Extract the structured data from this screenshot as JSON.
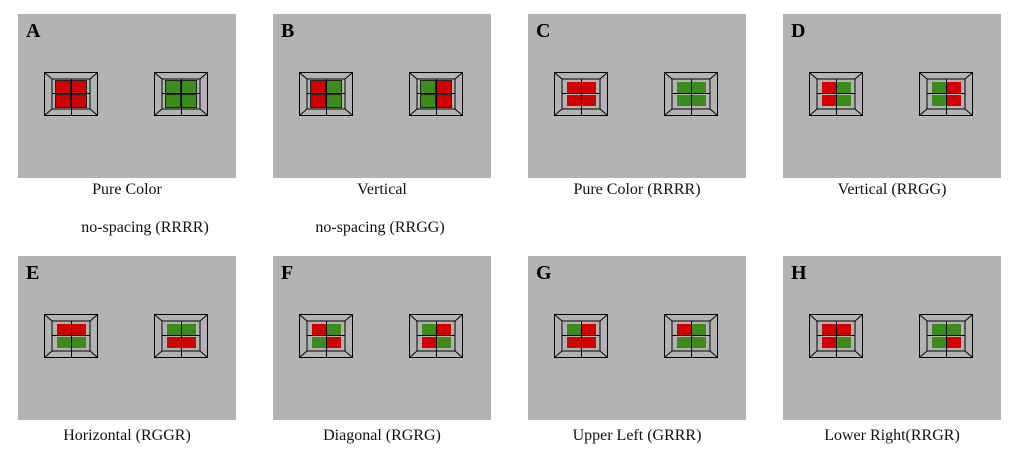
{
  "colors": {
    "R": "#d40000",
    "G": "#3c8c1c",
    "panel": "#b3b3b3"
  },
  "panels": [
    {
      "letter": "A",
      "caption": [
        "Pure Color",
        "no-spacing  (RRRR)"
      ],
      "mode": "nospace",
      "boxes": [
        [
          "R",
          "R",
          "R",
          "R"
        ],
        [
          "G",
          "G",
          "G",
          "G"
        ]
      ]
    },
    {
      "letter": "B",
      "caption": [
        "Vertical",
        "no-spacing (RRGG)"
      ],
      "mode": "nospace",
      "boxes": [
        [
          "R",
          "G",
          "R",
          "G"
        ],
        [
          "G",
          "R",
          "G",
          "R"
        ]
      ]
    },
    {
      "letter": "C",
      "caption": [
        "Pure Color (RRRR)"
      ],
      "mode": "spaced",
      "boxes": [
        [
          "R",
          "R",
          "R",
          "R"
        ],
        [
          "G",
          "G",
          "G",
          "G"
        ]
      ]
    },
    {
      "letter": "D",
      "caption": [
        "Vertical (RRGG)"
      ],
      "mode": "spaced",
      "boxes": [
        [
          "R",
          "G",
          "R",
          "G"
        ],
        [
          "G",
          "R",
          "G",
          "R"
        ]
      ]
    },
    {
      "letter": "E",
      "caption": [
        "Horizontal (RGGR)"
      ],
      "mode": "spaced",
      "boxes": [
        [
          "R",
          "R",
          "G",
          "G"
        ],
        [
          "G",
          "G",
          "R",
          "R"
        ]
      ]
    },
    {
      "letter": "F",
      "caption": [
        "Diagonal (RGRG)"
      ],
      "mode": "spaced",
      "boxes": [
        [
          "R",
          "G",
          "G",
          "R"
        ],
        [
          "G",
          "R",
          "R",
          "G"
        ]
      ]
    },
    {
      "letter": "G",
      "caption": [
        "Upper Left (GRRR)"
      ],
      "mode": "spaced",
      "boxes": [
        [
          "G",
          "R",
          "R",
          "R"
        ],
        [
          "R",
          "G",
          "G",
          "G"
        ]
      ]
    },
    {
      "letter": "H",
      "caption": [
        "Lower Right(RRGR)"
      ],
      "mode": "spaced",
      "boxes": [
        [
          "R",
          "R",
          "R",
          "G"
        ],
        [
          "G",
          "G",
          "G",
          "R"
        ]
      ]
    }
  ]
}
